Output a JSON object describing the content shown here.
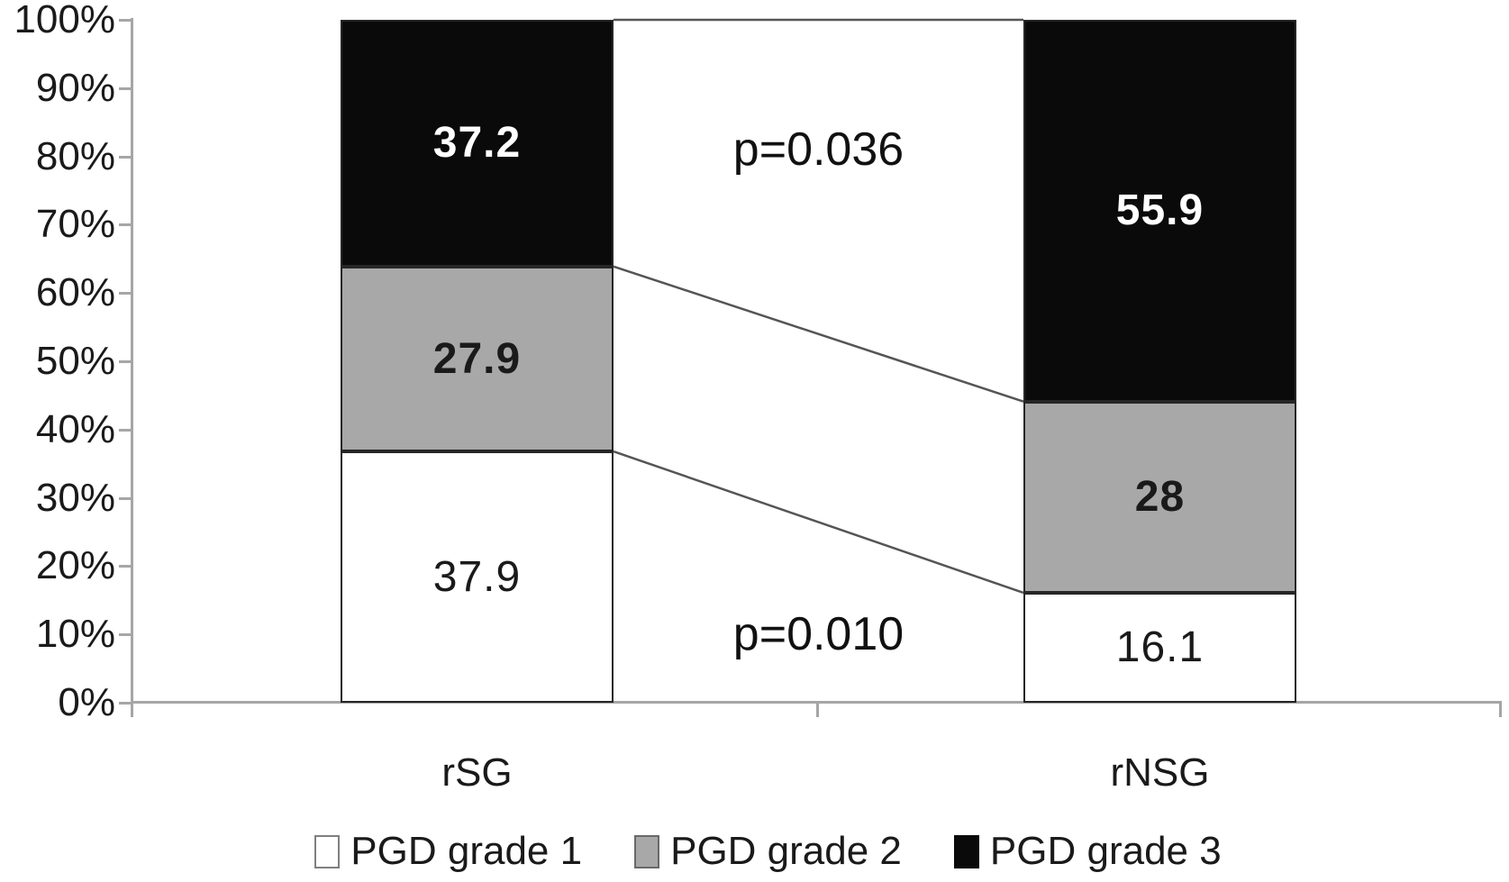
{
  "chart_data": {
    "type": "bar",
    "variant": "stacked-100-percent",
    "title": "",
    "xlabel": "",
    "ylabel": "",
    "categories": [
      "rSG",
      "rNSG"
    ],
    "series": [
      {
        "name": "PGD grade 1",
        "values": [
          37.9,
          16.1
        ],
        "labels": [
          "37.9",
          "16.1"
        ],
        "fill": "#ffffff",
        "label_color": "#1a1a1a",
        "label_bold": false,
        "swatch_border": "#7f7f7f"
      },
      {
        "name": "PGD grade 2",
        "values": [
          27.9,
          28
        ],
        "labels": [
          "27.9",
          "28"
        ],
        "fill": "#a8a8a8",
        "label_color": "#1a1a1a",
        "label_bold": true,
        "swatch_border": "#696969"
      },
      {
        "name": "PGD grade 3",
        "values": [
          37.2,
          55.9
        ],
        "labels": [
          "37.2",
          "55.9"
        ],
        "fill": "#0a0a0a",
        "label_color": "#ffffff",
        "label_bold": true,
        "swatch_border": "#0a0a0a"
      }
    ],
    "y_axis": {
      "min": 0,
      "max": 100,
      "ticks": [
        "0%",
        "10%",
        "20%",
        "30%",
        "40%",
        "50%",
        "60%",
        "70%",
        "80%",
        "90%",
        "100%"
      ]
    },
    "annotations": [
      {
        "text": "p=0.036",
        "position": "between-bars",
        "y_percent": 81
      },
      {
        "text": "p=0.010",
        "position": "between-bars",
        "y_percent": 10
      }
    ],
    "legend": {
      "position": "bottom",
      "entries": [
        "PGD grade 1",
        "PGD grade 2",
        "PGD grade 3"
      ]
    },
    "connector_lines": true,
    "grid": false
  },
  "colors": {
    "axis": "#a6a6a6",
    "bar_border": "#262626",
    "connector": "#555555",
    "text": "#1a1a1a"
  }
}
